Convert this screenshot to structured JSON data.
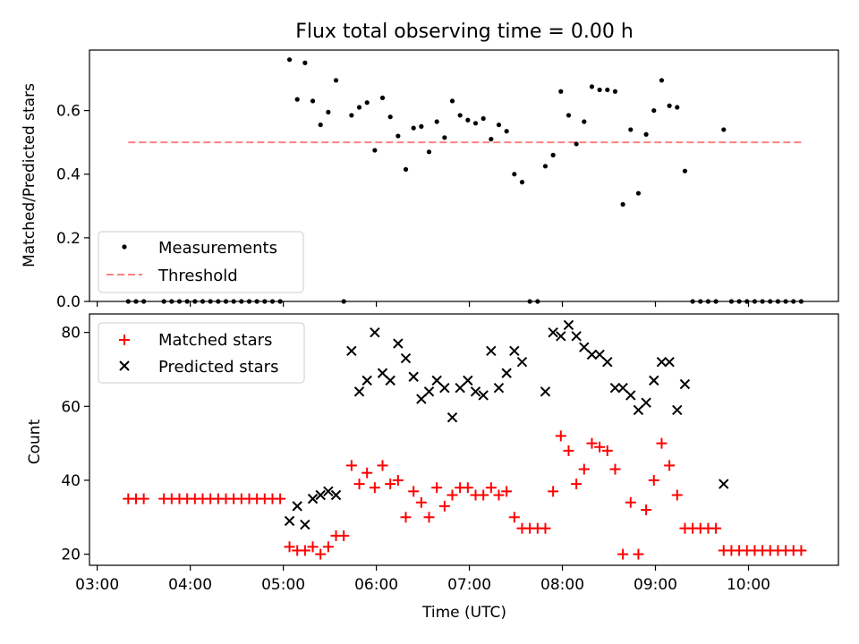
{
  "title": "Flux total observing time = 0.00 h",
  "colors": {
    "measurements": "#000000",
    "threshold": "#ff8080",
    "matched": "#ff0000",
    "predicted": "#000000"
  },
  "chart_data": [
    {
      "type": "scatter",
      "ylabel": "Matched/Predicted stars",
      "ylim": [
        0,
        0.79
      ],
      "yticks": [
        "0.0",
        "0.2",
        "0.4",
        "0.6"
      ],
      "legend": {
        "placement": "lower-left",
        "entries": [
          "Measurements",
          "Threshold"
        ]
      },
      "threshold": {
        "name": "Threshold",
        "value": 0.5,
        "x_range": [
          "03:20",
          "10:35"
        ]
      },
      "series": [
        {
          "name": "Measurements",
          "points": [
            [
              "03:20",
              0
            ],
            [
              "03:25",
              0
            ],
            [
              "03:30",
              0
            ],
            [
              "03:43",
              0
            ],
            [
              "03:48",
              0
            ],
            [
              "03:53",
              0
            ],
            [
              "03:58",
              0
            ],
            [
              "04:03",
              0
            ],
            [
              "04:08",
              0
            ],
            [
              "04:13",
              0
            ],
            [
              "04:18",
              0
            ],
            [
              "04:23",
              0
            ],
            [
              "04:28",
              0
            ],
            [
              "04:33",
              0
            ],
            [
              "04:38",
              0
            ],
            [
              "04:43",
              0
            ],
            [
              "04:48",
              0
            ],
            [
              "04:53",
              0
            ],
            [
              "04:58",
              0
            ],
            [
              "05:04",
              0.76
            ],
            [
              "05:09",
              0.635
            ],
            [
              "05:14",
              0.75
            ],
            [
              "05:19",
              0.63
            ],
            [
              "05:24",
              0.555
            ],
            [
              "05:29",
              0.595
            ],
            [
              "05:34",
              0.695
            ],
            [
              "05:39",
              0
            ],
            [
              "05:44",
              0.585
            ],
            [
              "05:49",
              0.61
            ],
            [
              "05:54",
              0.625
            ],
            [
              "05:59",
              0.475
            ],
            [
              "06:04",
              0.64
            ],
            [
              "06:09",
              0.58
            ],
            [
              "06:14",
              0.52
            ],
            [
              "06:19",
              0.415
            ],
            [
              "06:24",
              0.545
            ],
            [
              "06:29",
              0.55
            ],
            [
              "06:34",
              0.47
            ],
            [
              "06:39",
              0.565
            ],
            [
              "06:44",
              0.515
            ],
            [
              "06:49",
              0.63
            ],
            [
              "06:54",
              0.585
            ],
            [
              "06:59",
              0.57
            ],
            [
              "07:04",
              0.56
            ],
            [
              "07:09",
              0.575
            ],
            [
              "07:14",
              0.51
            ],
            [
              "07:19",
              0.555
            ],
            [
              "07:24",
              0.535
            ],
            [
              "07:29",
              0.4
            ],
            [
              "07:34",
              0.375
            ],
            [
              "07:39",
              0
            ],
            [
              "07:44",
              0
            ],
            [
              "07:49",
              0.425
            ],
            [
              "07:54",
              0.46
            ],
            [
              "07:59",
              0.66
            ],
            [
              "08:04",
              0.585
            ],
            [
              "08:09",
              0.495
            ],
            [
              "08:14",
              0.565
            ],
            [
              "08:19",
              0.675
            ],
            [
              "08:24",
              0.665
            ],
            [
              "08:29",
              0.665
            ],
            [
              "08:34",
              0.66
            ],
            [
              "08:39",
              0.305
            ],
            [
              "08:44",
              0.54
            ],
            [
              "08:49",
              0.34
            ],
            [
              "08:54",
              0.525
            ],
            [
              "08:59",
              0.6
            ],
            [
              "09:04",
              0.695
            ],
            [
              "09:09",
              0.615
            ],
            [
              "09:14",
              0.61
            ],
            [
              "09:19",
              0.41
            ],
            [
              "09:24",
              0
            ],
            [
              "09:29",
              0
            ],
            [
              "09:34",
              0
            ],
            [
              "09:39",
              0
            ],
            [
              "09:44",
              0.54
            ],
            [
              "09:49",
              0
            ],
            [
              "09:54",
              0
            ],
            [
              "09:59",
              0
            ],
            [
              "10:04",
              0
            ],
            [
              "10:09",
              0
            ],
            [
              "10:14",
              0
            ],
            [
              "10:19",
              0
            ],
            [
              "10:24",
              0
            ],
            [
              "10:29",
              0
            ],
            [
              "10:34",
              0
            ]
          ]
        }
      ]
    },
    {
      "type": "scatter",
      "ylabel": "Count",
      "xlabel": "Time (UTC)",
      "ylim": [
        17,
        85
      ],
      "yticks": [
        "20",
        "40",
        "60",
        "80"
      ],
      "xlim": [
        "02:55",
        "10:58"
      ],
      "xticks": [
        "03:00",
        "04:00",
        "05:00",
        "06:00",
        "07:00",
        "08:00",
        "09:00",
        "10:00"
      ],
      "legend": {
        "placement": "upper-left",
        "entries": [
          "Matched stars",
          "Predicted stars"
        ]
      },
      "series": [
        {
          "name": "Matched stars",
          "points": [
            [
              "03:20",
              35
            ],
            [
              "03:25",
              35
            ],
            [
              "03:30",
              35
            ],
            [
              "03:43",
              35
            ],
            [
              "03:48",
              35
            ],
            [
              "03:53",
              35
            ],
            [
              "03:58",
              35
            ],
            [
              "04:03",
              35
            ],
            [
              "04:08",
              35
            ],
            [
              "04:13",
              35
            ],
            [
              "04:18",
              35
            ],
            [
              "04:23",
              35
            ],
            [
              "04:28",
              35
            ],
            [
              "04:33",
              35
            ],
            [
              "04:38",
              35
            ],
            [
              "04:43",
              35
            ],
            [
              "04:48",
              35
            ],
            [
              "04:53",
              35
            ],
            [
              "04:58",
              35
            ],
            [
              "05:04",
              22
            ],
            [
              "05:09",
              21
            ],
            [
              "05:14",
              21
            ],
            [
              "05:19",
              22
            ],
            [
              "05:24",
              20
            ],
            [
              "05:29",
              22
            ],
            [
              "05:34",
              25
            ],
            [
              "05:39",
              25
            ],
            [
              "05:44",
              44
            ],
            [
              "05:49",
              39
            ],
            [
              "05:54",
              42
            ],
            [
              "05:59",
              38
            ],
            [
              "06:04",
              44
            ],
            [
              "06:09",
              39
            ],
            [
              "06:14",
              40
            ],
            [
              "06:19",
              30
            ],
            [
              "06:24",
              37
            ],
            [
              "06:29",
              34
            ],
            [
              "06:34",
              30
            ],
            [
              "06:39",
              38
            ],
            [
              "06:44",
              33
            ],
            [
              "06:49",
              36
            ],
            [
              "06:54",
              38
            ],
            [
              "06:59",
              38
            ],
            [
              "07:04",
              36
            ],
            [
              "07:09",
              36
            ],
            [
              "07:14",
              38
            ],
            [
              "07:19",
              36
            ],
            [
              "07:24",
              37
            ],
            [
              "07:29",
              30
            ],
            [
              "07:34",
              27
            ],
            [
              "07:39",
              27
            ],
            [
              "07:44",
              27
            ],
            [
              "07:49",
              27
            ],
            [
              "07:54",
              37
            ],
            [
              "07:59",
              52
            ],
            [
              "08:04",
              48
            ],
            [
              "08:09",
              39
            ],
            [
              "08:14",
              43
            ],
            [
              "08:19",
              50
            ],
            [
              "08:24",
              49
            ],
            [
              "08:29",
              48
            ],
            [
              "08:34",
              43
            ],
            [
              "08:39",
              20
            ],
            [
              "08:44",
              34
            ],
            [
              "08:49",
              20
            ],
            [
              "08:54",
              32
            ],
            [
              "08:59",
              40
            ],
            [
              "09:04",
              50
            ],
            [
              "09:09",
              44
            ],
            [
              "09:14",
              36
            ],
            [
              "09:19",
              27
            ],
            [
              "09:24",
              27
            ],
            [
              "09:29",
              27
            ],
            [
              "09:34",
              27
            ],
            [
              "09:39",
              27
            ],
            [
              "09:44",
              21
            ],
            [
              "09:49",
              21
            ],
            [
              "09:54",
              21
            ],
            [
              "09:59",
              21
            ],
            [
              "10:04",
              21
            ],
            [
              "10:09",
              21
            ],
            [
              "10:14",
              21
            ],
            [
              "10:19",
              21
            ],
            [
              "10:24",
              21
            ],
            [
              "10:29",
              21
            ],
            [
              "10:34",
              21
            ]
          ]
        },
        {
          "name": "Predicted stars",
          "points": [
            [
              "05:04",
              29
            ],
            [
              "05:09",
              33
            ],
            [
              "05:14",
              28
            ],
            [
              "05:19",
              35
            ],
            [
              "05:24",
              36
            ],
            [
              "05:29",
              37
            ],
            [
              "05:34",
              36
            ],
            [
              "05:44",
              75
            ],
            [
              "05:49",
              64
            ],
            [
              "05:54",
              67
            ],
            [
              "05:59",
              80
            ],
            [
              "06:04",
              69
            ],
            [
              "06:09",
              67
            ],
            [
              "06:14",
              77
            ],
            [
              "06:19",
              73
            ],
            [
              "06:24",
              68
            ],
            [
              "06:29",
              62
            ],
            [
              "06:34",
              64
            ],
            [
              "06:39",
              67
            ],
            [
              "06:44",
              65
            ],
            [
              "06:49",
              57
            ],
            [
              "06:54",
              65
            ],
            [
              "06:59",
              67
            ],
            [
              "07:04",
              64
            ],
            [
              "07:09",
              63
            ],
            [
              "07:14",
              75
            ],
            [
              "07:19",
              65
            ],
            [
              "07:24",
              69
            ],
            [
              "07:29",
              75
            ],
            [
              "07:34",
              72
            ],
            [
              "07:49",
              64
            ],
            [
              "07:54",
              80
            ],
            [
              "07:59",
              79
            ],
            [
              "08:04",
              82
            ],
            [
              "08:09",
              79
            ],
            [
              "08:14",
              76
            ],
            [
              "08:19",
              74
            ],
            [
              "08:24",
              74
            ],
            [
              "08:29",
              72
            ],
            [
              "08:34",
              65
            ],
            [
              "08:39",
              65
            ],
            [
              "08:44",
              63
            ],
            [
              "08:49",
              59
            ],
            [
              "08:54",
              61
            ],
            [
              "08:59",
              67
            ],
            [
              "09:04",
              72
            ],
            [
              "09:09",
              72
            ],
            [
              "09:14",
              59
            ],
            [
              "09:19",
              66
            ],
            [
              "09:44",
              39
            ]
          ]
        }
      ]
    }
  ]
}
